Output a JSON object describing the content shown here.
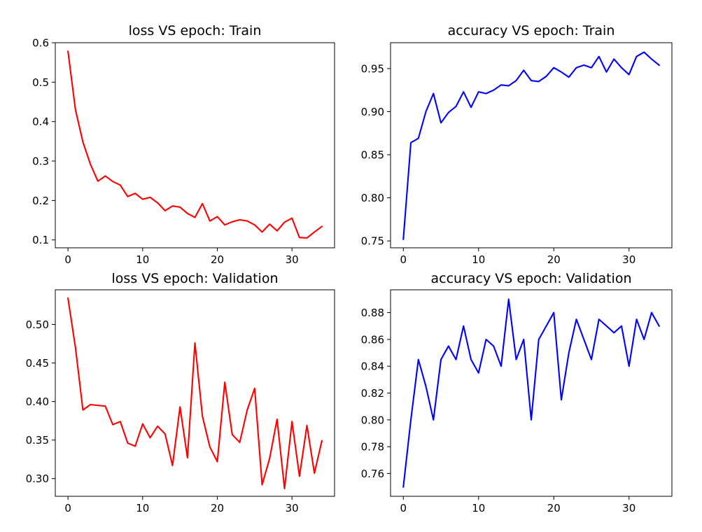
{
  "chart_data": [
    {
      "id": "loss-train",
      "type": "line",
      "title": "loss VS epoch: Train",
      "xlabel": "",
      "ylabel": "",
      "xlim": [
        -1.7,
        35.7
      ],
      "ylim": [
        0.08,
        0.6
      ],
      "xticks": [
        0,
        10,
        20,
        30
      ],
      "yticks": [
        0.1,
        0.2,
        0.3,
        0.4,
        0.5,
        0.6
      ],
      "ytick_labels": [
        "0.1",
        "0.2",
        "0.3",
        "0.4",
        "0.5",
        "0.6"
      ],
      "grid": false,
      "series": [
        {
          "color": "#ff0000",
          "x": [
            0,
            1,
            2,
            3,
            4,
            5,
            6,
            7,
            8,
            9,
            10,
            11,
            12,
            13,
            14,
            15,
            16,
            17,
            18,
            19,
            20,
            21,
            22,
            23,
            24,
            25,
            26,
            27,
            28,
            29,
            30,
            31,
            32,
            33,
            34
          ],
          "values": [
            0.578,
            0.43,
            0.348,
            0.292,
            0.249,
            0.262,
            0.248,
            0.239,
            0.21,
            0.218,
            0.203,
            0.208,
            0.194,
            0.174,
            0.186,
            0.183,
            0.167,
            0.157,
            0.192,
            0.148,
            0.159,
            0.138,
            0.146,
            0.151,
            0.148,
            0.138,
            0.12,
            0.14,
            0.123,
            0.145,
            0.155,
            0.106,
            0.105,
            0.12,
            0.134
          ]
        }
      ]
    },
    {
      "id": "accuracy-train",
      "type": "line",
      "title": "accuracy VS epoch: Train",
      "xlabel": "",
      "ylabel": "",
      "xlim": [
        -1.7,
        35.7
      ],
      "ylim": [
        0.742,
        0.98
      ],
      "xticks": [
        0,
        10,
        20,
        30
      ],
      "yticks": [
        0.75,
        0.8,
        0.85,
        0.9,
        0.95
      ],
      "ytick_labels": [
        "0.75",
        "0.80",
        "0.85",
        "0.90",
        "0.95"
      ],
      "grid": false,
      "series": [
        {
          "color": "#0000ff",
          "x": [
            0,
            1,
            2,
            3,
            4,
            5,
            6,
            7,
            8,
            9,
            10,
            11,
            12,
            13,
            14,
            15,
            16,
            17,
            18,
            19,
            20,
            21,
            22,
            23,
            24,
            25,
            26,
            27,
            28,
            29,
            30,
            31,
            32,
            33,
            34
          ],
          "values": [
            0.752,
            0.864,
            0.869,
            0.9,
            0.921,
            0.887,
            0.899,
            0.906,
            0.923,
            0.905,
            0.923,
            0.921,
            0.925,
            0.931,
            0.93,
            0.936,
            0.948,
            0.936,
            0.935,
            0.941,
            0.951,
            0.946,
            0.94,
            0.951,
            0.954,
            0.951,
            0.964,
            0.946,
            0.961,
            0.951,
            0.943,
            0.964,
            0.969,
            0.961,
            0.954
          ]
        }
      ]
    },
    {
      "id": "loss-validation",
      "type": "line",
      "title": "loss VS epoch: Validation",
      "xlabel": "",
      "ylabel": "",
      "xlim": [
        -1.7,
        35.7
      ],
      "ylim": [
        0.277,
        0.545
      ],
      "xticks": [
        0,
        10,
        20,
        30
      ],
      "yticks": [
        0.3,
        0.35,
        0.4,
        0.45,
        0.5
      ],
      "ytick_labels": [
        "0.30",
        "0.35",
        "0.40",
        "0.45",
        "0.50"
      ],
      "grid": false,
      "series": [
        {
          "color": "#ff0000",
          "x": [
            0,
            1,
            2,
            3,
            4,
            5,
            6,
            7,
            8,
            9,
            10,
            11,
            12,
            13,
            14,
            15,
            16,
            17,
            18,
            19,
            20,
            21,
            22,
            23,
            24,
            25,
            26,
            27,
            28,
            29,
            30,
            31,
            32,
            33,
            34
          ],
          "values": [
            0.534,
            0.47,
            0.389,
            0.396,
            0.395,
            0.394,
            0.37,
            0.374,
            0.346,
            0.342,
            0.371,
            0.353,
            0.368,
            0.358,
            0.317,
            0.393,
            0.327,
            0.476,
            0.381,
            0.341,
            0.322,
            0.425,
            0.357,
            0.347,
            0.389,
            0.417,
            0.292,
            0.326,
            0.377,
            0.287,
            0.374,
            0.303,
            0.369,
            0.307,
            0.349
          ]
        }
      ]
    },
    {
      "id": "accuracy-validation",
      "type": "line",
      "title": "accuracy VS epoch: Validation",
      "xlabel": "",
      "ylabel": "",
      "xlim": [
        -1.7,
        35.7
      ],
      "ylim": [
        0.743,
        0.897
      ],
      "xticks": [
        0,
        10,
        20,
        30
      ],
      "yticks": [
        0.76,
        0.78,
        0.8,
        0.82,
        0.84,
        0.86,
        0.88
      ],
      "ytick_labels": [
        "0.76",
        "0.78",
        "0.80",
        "0.82",
        "0.84",
        "0.86",
        "0.88"
      ],
      "grid": false,
      "series": [
        {
          "color": "#0000ff",
          "x": [
            0,
            1,
            2,
            3,
            4,
            5,
            6,
            7,
            8,
            9,
            10,
            11,
            12,
            13,
            14,
            15,
            16,
            17,
            18,
            19,
            20,
            21,
            22,
            23,
            24,
            25,
            26,
            27,
            28,
            29,
            30,
            31,
            32,
            33,
            34
          ],
          "values": [
            0.75,
            0.8,
            0.845,
            0.825,
            0.8,
            0.845,
            0.855,
            0.845,
            0.87,
            0.845,
            0.835,
            0.86,
            0.855,
            0.84,
            0.89,
            0.845,
            0.86,
            0.8,
            0.86,
            0.87,
            0.88,
            0.815,
            0.85,
            0.875,
            0.86,
            0.845,
            0.875,
            0.87,
            0.865,
            0.87,
            0.84,
            0.875,
            0.86,
            0.88,
            0.87
          ]
        }
      ]
    }
  ]
}
